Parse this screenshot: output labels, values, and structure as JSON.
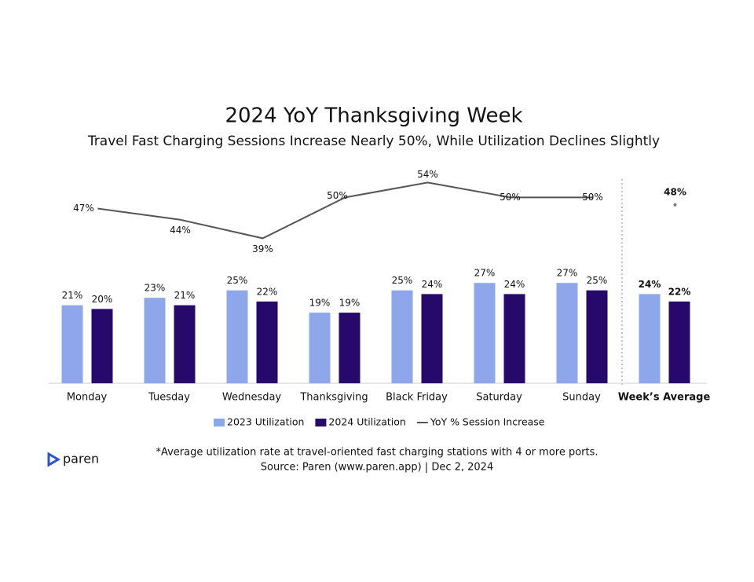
{
  "chart_data": {
    "type": "bar_line",
    "title": "2024 YoY Thanksgiving Week",
    "subtitle": "Travel Fast Charging Sessions Increase Nearly 50%, While Utilization Declines Slightly",
    "categories": [
      "Monday",
      "Tuesday",
      "Wednesday",
      "Thanksgiving",
      "Black Friday",
      "Saturday",
      "Sunday",
      "Week’s Average"
    ],
    "series": [
      {
        "name": "2023 Utilization",
        "color": "#8ea7ea",
        "type": "bar",
        "values": [
          21,
          23,
          25,
          19,
          25,
          27,
          27,
          24
        ],
        "value_labels": [
          "21%",
          "23%",
          "25%",
          "19%",
          "25%",
          "27%",
          "27%",
          "24%"
        ]
      },
      {
        "name": "2024 Utilization",
        "color": "#27086b",
        "type": "bar",
        "values": [
          20,
          21,
          22,
          19,
          24,
          24,
          25,
          22
        ],
        "value_labels": [
          "20%",
          "21%",
          "22%",
          "19%",
          "24%",
          "24%",
          "25%",
          "22%"
        ]
      },
      {
        "name": "YoY % Session Increase",
        "color": "#555555",
        "type": "line",
        "axis": "y2",
        "values": [
          47,
          44,
          39,
          50,
          54,
          50,
          50,
          48
        ],
        "value_labels": [
          "47%",
          "44%",
          "39%",
          "50%",
          "54%",
          "50%",
          "50%",
          "48%"
        ]
      }
    ],
    "ylim": [
      0,
      60
    ],
    "y2lim": [
      0,
      60
    ],
    "footnote": "*Average utilization rate at travel-oriented fast charging stations with 4 or more ports.",
    "source": "Source: Paren (www.paren.app) | Dec 2, 2024",
    "logo": "paren"
  }
}
